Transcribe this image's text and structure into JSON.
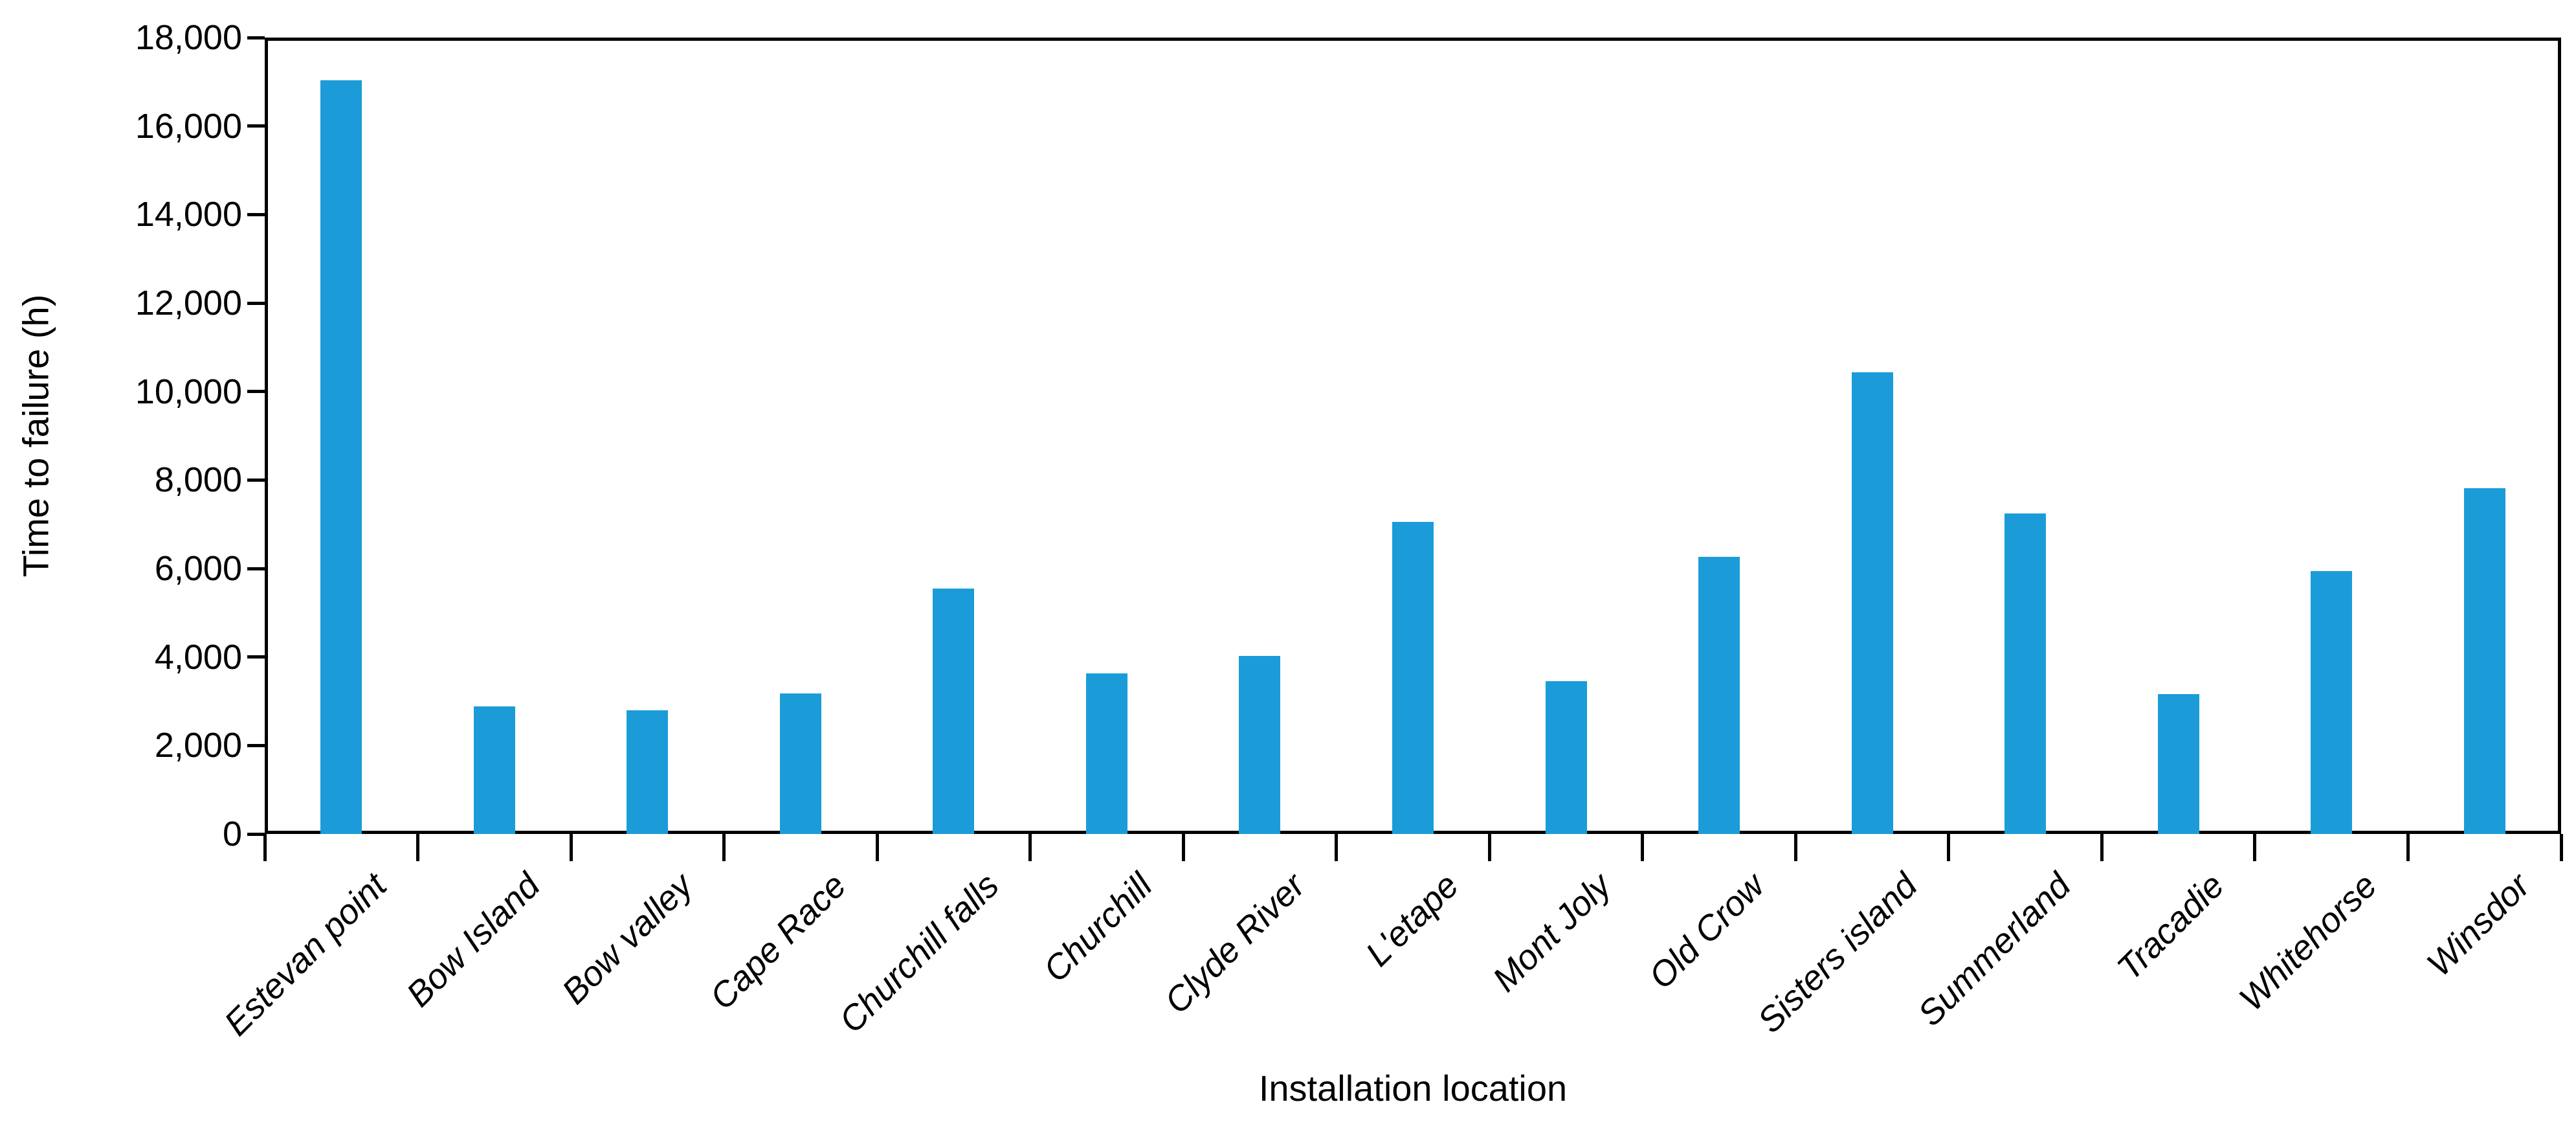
{
  "chart_data": {
    "type": "bar",
    "title": "",
    "xlabel": "Installation location",
    "ylabel": "Time to failure (h)",
    "categories": [
      "Estevan point",
      "Bow Island",
      "Bow valley",
      "Cape Race",
      "Churchill falls",
      "Churchill",
      "Clyde River",
      "L'etape",
      "Mont Joly",
      "Old Crow",
      "Sisters island",
      "Summerland",
      "Tracadie",
      "Whitehorse",
      "Winsdor"
    ],
    "values": [
      17040,
      2890,
      2790,
      3170,
      5550,
      3630,
      4030,
      7060,
      3460,
      6260,
      10430,
      7250,
      3160,
      5940,
      7810
    ],
    "ylim": [
      0,
      18000
    ],
    "ytick_step": 2000,
    "ytick_labels": [
      "0",
      "2,000",
      "4,000",
      "6,000",
      "8,000",
      "10,000",
      "12,000",
      "14,000",
      "16,000",
      "18,000"
    ],
    "grid": "off",
    "legend": "none",
    "bar_color": "#1B9CD8",
    "axis_color": "#000000",
    "plot_border": "box"
  }
}
